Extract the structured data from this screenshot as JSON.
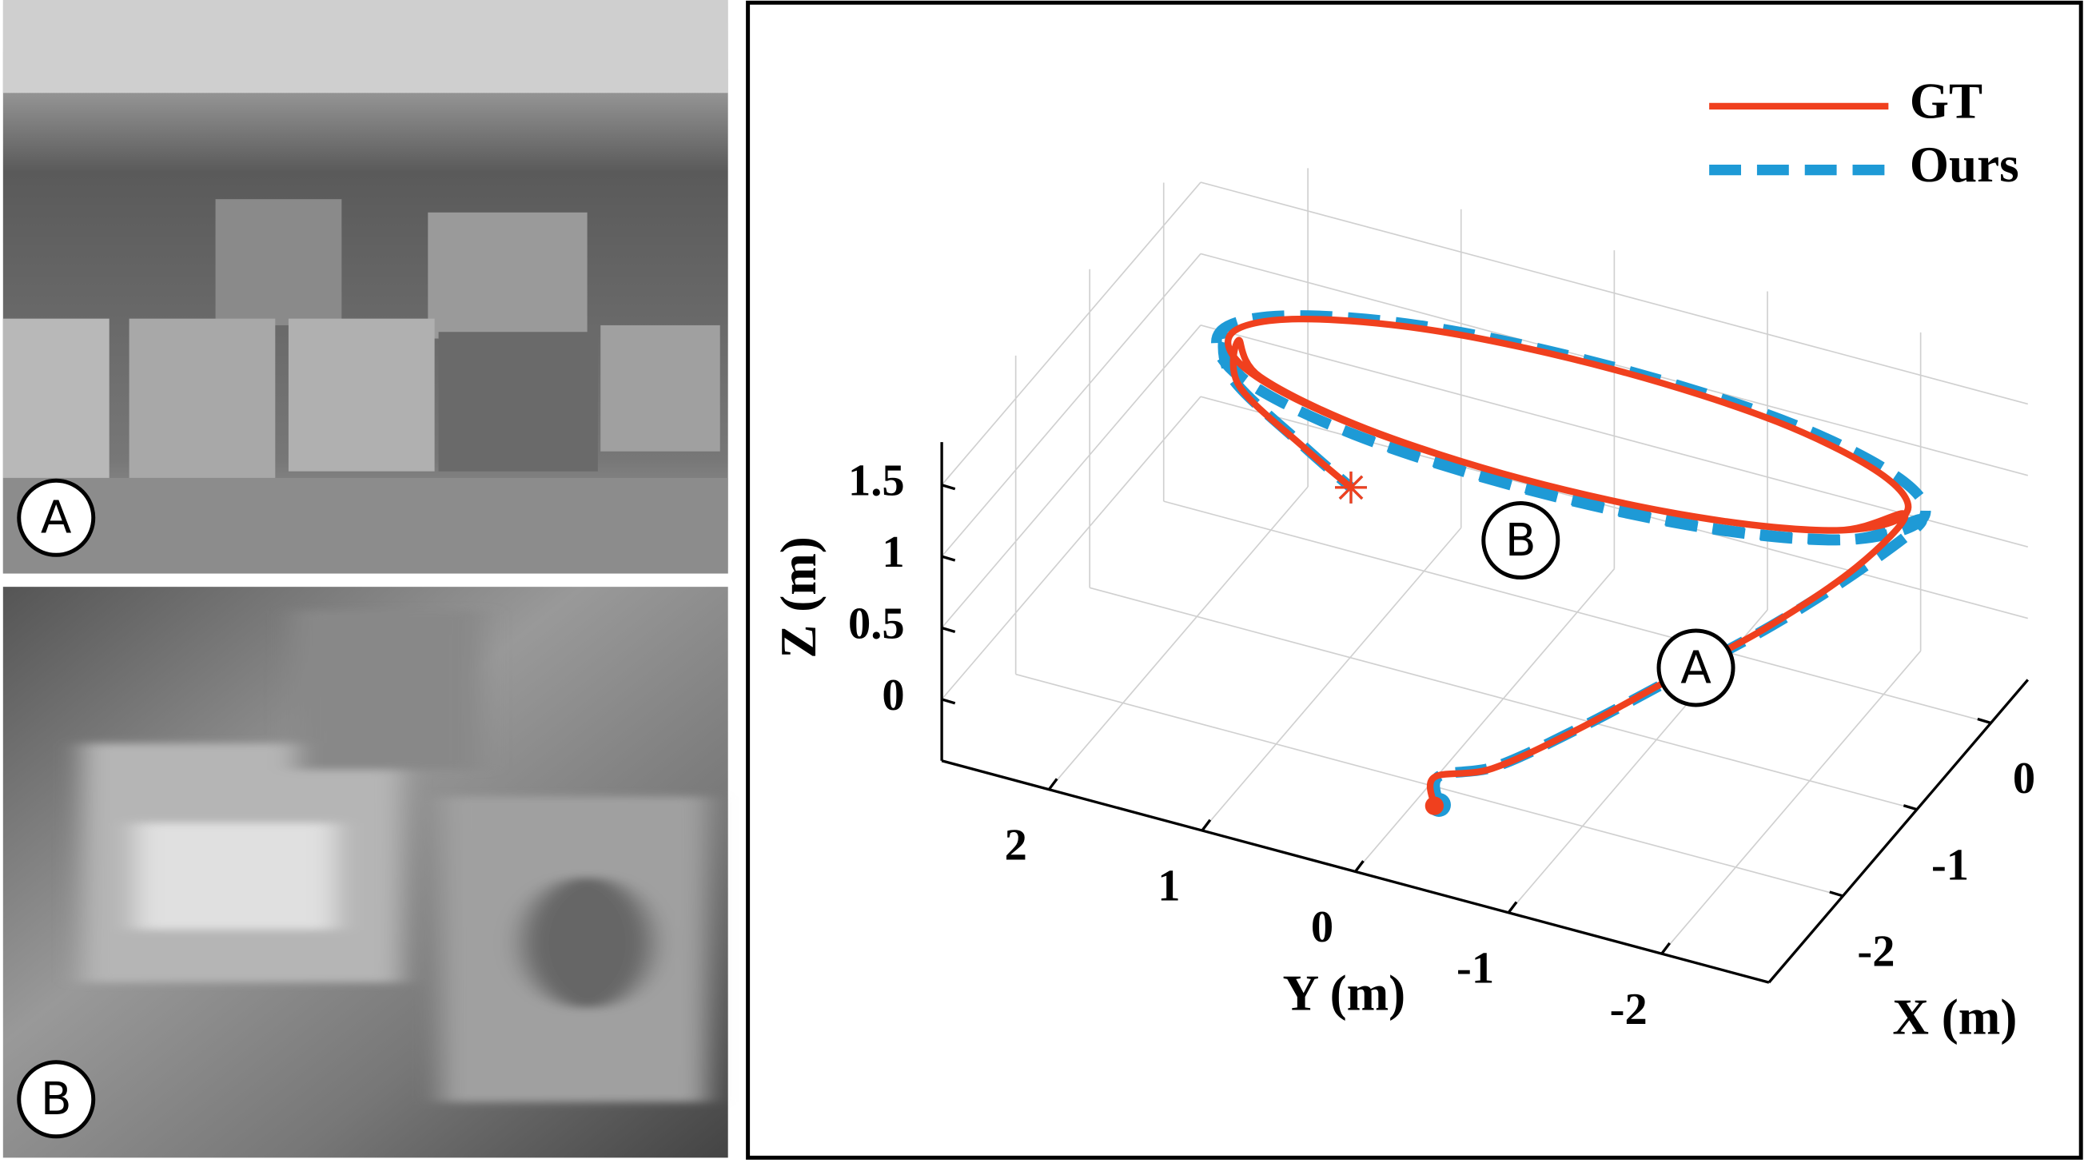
{
  "panels": [
    {
      "label": "A"
    },
    {
      "label": "B"
    }
  ],
  "chart_data": {
    "type": "line3d",
    "xlabel": "X (m)",
    "ylabel": "Y (m)",
    "zlabel": "Z (m)",
    "xlim": [
      -3,
      0.5
    ],
    "ylim": [
      -2.7,
      2.7
    ],
    "zlim": [
      -0.43,
      1.8
    ],
    "xticks": [
      -2,
      -1,
      0
    ],
    "yticks": [
      -2,
      -1,
      0,
      1,
      2
    ],
    "zticks": [
      0,
      0.5,
      1,
      1.5
    ],
    "grid": true,
    "legend": "upper right",
    "annotations": [
      "A",
      "B"
    ],
    "series": [
      {
        "name": "GT",
        "color": "#f0401e",
        "style": "solid",
        "x": [
          -2.76,
          -2.76,
          -2.6,
          -2.3,
          -2.0,
          -1.6,
          -1.2,
          -0.85,
          -1.17,
          -1.4,
          -1.48,
          -1.4,
          -1.17,
          -0.85,
          -0.54,
          -0.3,
          -0.22,
          -0.3,
          -0.54,
          -0.85,
          -1.14,
          -1.36,
          -1.44,
          -1.36,
          -1.14,
          -0.85,
          -1.05,
          -1.2,
          -1.32
        ],
        "y": [
          -0.4,
          -0.4,
          -0.7,
          -1.1,
          -1.5,
          -2.0,
          -2.4,
          -2.55,
          -2.26,
          -1.45,
          -0.35,
          0.75,
          1.56,
          1.85,
          1.56,
          0.75,
          -0.35,
          -1.45,
          -2.26,
          -2.55,
          -2.22,
          -1.42,
          -0.35,
          0.72,
          1.52,
          1.8,
          1.7,
          1.2,
          0.84
        ],
        "z": [
          0,
          0.2,
          0.25,
          0.45,
          0.7,
          1.0,
          1.3,
          1.5,
          1.5,
          1.5,
          1.5,
          1.5,
          1.5,
          1.5,
          1.5,
          1.5,
          1.5,
          1.5,
          1.5,
          1.5,
          1.47,
          1.47,
          1.47,
          1.47,
          1.47,
          1.47,
          1.3,
          1.1,
          1.0
        ]
      },
      {
        "name": "Ours",
        "color": "#1e9ad6",
        "style": "dashed",
        "x": [
          -2.74,
          -2.74,
          -2.58,
          -2.27,
          -1.97,
          -1.57,
          -1.18,
          -0.83,
          -1.2,
          -1.45,
          -1.53,
          -1.45,
          -1.2,
          -0.83,
          -0.5,
          -0.25,
          -0.17,
          -0.25,
          -0.5,
          -0.83,
          -1.18,
          -1.42,
          -1.5,
          -1.42,
          -1.18,
          -0.83,
          -1.03,
          -1.2,
          -1.32
        ],
        "y": [
          -0.42,
          -0.42,
          -0.72,
          -1.12,
          -1.53,
          -2.03,
          -2.45,
          -2.65,
          -2.35,
          -1.5,
          -0.35,
          0.8,
          1.63,
          1.93,
          1.63,
          0.8,
          -0.35,
          -1.5,
          -2.35,
          -2.65,
          -2.3,
          -1.47,
          -0.35,
          0.77,
          1.6,
          1.9,
          1.75,
          1.22,
          0.84
        ],
        "z": [
          0,
          0.2,
          0.26,
          0.46,
          0.71,
          1.01,
          1.31,
          1.48,
          1.48,
          1.48,
          1.48,
          1.48,
          1.48,
          1.48,
          1.48,
          1.48,
          1.48,
          1.48,
          1.48,
          1.48,
          1.45,
          1.45,
          1.45,
          1.45,
          1.45,
          1.45,
          1.32,
          1.12,
          1.0
        ]
      }
    ]
  }
}
